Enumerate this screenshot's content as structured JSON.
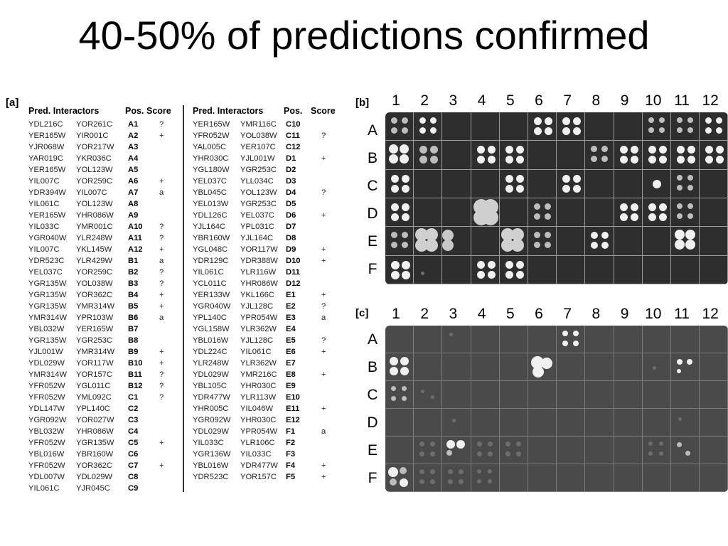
{
  "slide": {
    "title": "40-50% of predictions confirmed"
  },
  "table": {
    "panel_label": "[a]",
    "headers": {
      "interactors": "Pred. Interactors",
      "pos": "Pos.",
      "score": "Score"
    },
    "left_rows": [
      {
        "a": "YDL216C",
        "b": "YOR261C",
        "pos": "A1",
        "score": "?"
      },
      {
        "a": "YER165W",
        "b": "YIR001C",
        "pos": "A2",
        "score": "+"
      },
      {
        "a": "YJR068W",
        "b": "YOR217W",
        "pos": "A3",
        "score": ""
      },
      {
        "a": "YAR019C",
        "b": "YKR036C",
        "pos": "A4",
        "score": ""
      },
      {
        "a": "YER165W",
        "b": "YOL123W",
        "pos": "A5",
        "score": ""
      },
      {
        "a": "YIL007C",
        "b": "YOR259C",
        "pos": "A6",
        "score": "+"
      },
      {
        "a": "YDR394W",
        "b": "YIL007C",
        "pos": "A7",
        "score": "a"
      },
      {
        "a": "YIL061C",
        "b": "YOL123W",
        "pos": "A8",
        "score": ""
      },
      {
        "a": "YER165W",
        "b": "YHR086W",
        "pos": "A9",
        "score": ""
      },
      {
        "a": "YIL033C",
        "b": "YMR001C",
        "pos": "A10",
        "score": "?"
      },
      {
        "a": "YGR040W",
        "b": "YLR248W",
        "pos": "A11",
        "score": "?"
      },
      {
        "a": "YIL007C",
        "b": "YKL145W",
        "pos": "A12",
        "score": "+"
      },
      {
        "a": "YDR523C",
        "b": "YLR429W",
        "pos": "B1",
        "score": "a"
      },
      {
        "a": "YEL037C",
        "b": "YOR259C",
        "pos": "B2",
        "score": "?"
      },
      {
        "a": "YGR135W",
        "b": "YOL038W",
        "pos": "B3",
        "score": "?"
      },
      {
        "a": "YGR135W",
        "b": "YOR362C",
        "pos": "B4",
        "score": "+"
      },
      {
        "a": "YGR135W",
        "b": "YMR314W",
        "pos": "B5",
        "score": "+"
      },
      {
        "a": "YMR314W",
        "b": "YPR103W",
        "pos": "B6",
        "score": "a"
      },
      {
        "a": "YBL032W",
        "b": "YER165W",
        "pos": "B7",
        "score": ""
      },
      {
        "a": "YGR135W",
        "b": "YGR253C",
        "pos": "B8",
        "score": ""
      },
      {
        "a": "YJL001W",
        "b": "YMR314W",
        "pos": "B9",
        "score": "+"
      },
      {
        "a": "YDL029W",
        "b": "YOR117W",
        "pos": "B10",
        "score": "+"
      },
      {
        "a": "YMR314W",
        "b": "YOR157C",
        "pos": "B11",
        "score": "?"
      },
      {
        "a": "YFR052W",
        "b": "YGL011C",
        "pos": "B12",
        "score": "?"
      },
      {
        "a": "YFR052W",
        "b": "YML092C",
        "pos": "C1",
        "score": "?"
      },
      {
        "a": "YDL147W",
        "b": "YPL140C",
        "pos": "C2",
        "score": ""
      },
      {
        "a": "YGR092W",
        "b": "YOR027W",
        "pos": "C3",
        "score": ""
      },
      {
        "a": "YBL032W",
        "b": "YHR086W",
        "pos": "C4",
        "score": ""
      },
      {
        "a": "YFR052W",
        "b": "YGR135W",
        "pos": "C5",
        "score": "+"
      },
      {
        "a": "YBL016W",
        "b": "YBR160W",
        "pos": "C6",
        "score": ""
      },
      {
        "a": "YFR052W",
        "b": "YOR362C",
        "pos": "C7",
        "score": "+"
      },
      {
        "a": "YDL007W",
        "b": "YDL029W",
        "pos": "C8",
        "score": ""
      },
      {
        "a": "YIL061C",
        "b": "YJR045C",
        "pos": "C9",
        "score": ""
      }
    ],
    "right_rows": [
      {
        "a": "YER165W",
        "b": "YMR116C",
        "pos": "C10",
        "score": ""
      },
      {
        "a": "YFR052W",
        "b": "YOL038W",
        "pos": "C11",
        "score": "?"
      },
      {
        "a": "YAL005C",
        "b": "YER107C",
        "pos": "C12",
        "score": ""
      },
      {
        "a": "YHR030C",
        "b": "YJL001W",
        "pos": "D1",
        "score": "+"
      },
      {
        "a": "YGL180W",
        "b": "YGR253C",
        "pos": "D2",
        "score": ""
      },
      {
        "a": "YEL037C",
        "b": "YLL034C",
        "pos": "D3",
        "score": ""
      },
      {
        "a": "YBL045C",
        "b": "YOL123W",
        "pos": "D4",
        "score": "?"
      },
      {
        "a": "YEL013W",
        "b": "YGR253C",
        "pos": "D5",
        "score": ""
      },
      {
        "a": "YDL126C",
        "b": "YEL037C",
        "pos": "D6",
        "score": "+"
      },
      {
        "a": "YJL164C",
        "b": "YPL031C",
        "pos": "D7",
        "score": ""
      },
      {
        "a": "YBR160W",
        "b": "YJL164C",
        "pos": "D8",
        "score": ""
      },
      {
        "a": "YGL048C",
        "b": "YOR117W",
        "pos": "D9",
        "score": "+"
      },
      {
        "a": "YDR129C",
        "b": "YDR388W",
        "pos": "D10",
        "score": "+"
      },
      {
        "a": "YIL061C",
        "b": "YLR116W",
        "pos": "D11",
        "score": ""
      },
      {
        "a": "YCL011C",
        "b": "YHR086W",
        "pos": "D12",
        "score": ""
      },
      {
        "a": "YER133W",
        "b": "YKL166C",
        "pos": "E1",
        "score": "+"
      },
      {
        "a": "YGR040W",
        "b": "YJL128C",
        "pos": "E2",
        "score": "?"
      },
      {
        "a": "YPL140C",
        "b": "YPR054W",
        "pos": "E3",
        "score": "a"
      },
      {
        "a": "YGL158W",
        "b": "YLR362W",
        "pos": "E4",
        "score": ""
      },
      {
        "a": "YBL016W",
        "b": "YJL128C",
        "pos": "E5",
        "score": "?"
      },
      {
        "a": "YDL224C",
        "b": "YIL061C",
        "pos": "E6",
        "score": "+"
      },
      {
        "a": "YLR248W",
        "b": "YLR362W",
        "pos": "E7",
        "score": ""
      },
      {
        "a": "YDL029W",
        "b": "YMR216C",
        "pos": "E8",
        "score": "+"
      },
      {
        "a": "YBL105C",
        "b": "YHR030C",
        "pos": "E9",
        "score": ""
      },
      {
        "a": "YDR477W",
        "b": "YLR113W",
        "pos": "E10",
        "score": ""
      },
      {
        "a": "YHR005C",
        "b": "YIL046W",
        "pos": "E11",
        "score": "+"
      },
      {
        "a": "YGR092W",
        "b": "YHR030C",
        "pos": "E12",
        "score": ""
      },
      {
        "a": "YDL029W",
        "b": "YPR054W",
        "pos": "F1",
        "score": "a"
      },
      {
        "a": "YIL033C",
        "b": "YLR106C",
        "pos": "F2",
        "score": ""
      },
      {
        "a": "YGR136W",
        "b": "YIL033C",
        "pos": "F3",
        "score": ""
      },
      {
        "a": "YBL016W",
        "b": "YDR477W",
        "pos": "F4",
        "score": "+"
      },
      {
        "a": "YDR523C",
        "b": "YOR157C",
        "pos": "F5",
        "score": "+"
      }
    ]
  },
  "plate_b": {
    "panel_label": "[b]",
    "columns": [
      "1",
      "2",
      "3",
      "4",
      "5",
      "6",
      "7",
      "8",
      "9",
      "10",
      "11",
      "12"
    ],
    "rows": [
      "A",
      "B",
      "C",
      "D",
      "E",
      "F"
    ]
  },
  "plate_c": {
    "panel_label": "[c]",
    "columns": [
      "1",
      "2",
      "3",
      "4",
      "5",
      "6",
      "7",
      "8",
      "9",
      "10",
      "11",
      "12"
    ],
    "rows": [
      "A",
      "B",
      "C",
      "D",
      "E",
      "F"
    ]
  },
  "colors": {
    "background": "#ffffff",
    "plate_b": "#2e2e2e",
    "plate_c": "#4a4a4a",
    "colony": "#f2f2f2"
  }
}
